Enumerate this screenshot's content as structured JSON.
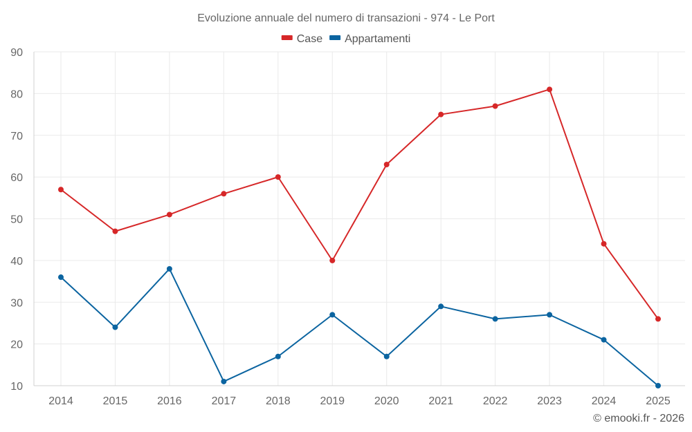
{
  "chart_data": {
    "type": "line",
    "title": "Evoluzione annuale del numero di transazioni - 974 - Le Port",
    "categories": [
      "2014",
      "2015",
      "2016",
      "2017",
      "2018",
      "2019",
      "2020",
      "2021",
      "2022",
      "2023",
      "2024",
      "2025"
    ],
    "series": [
      {
        "name": "Case",
        "color": "#d62728",
        "values": [
          57,
          47,
          51,
          56,
          60,
          40,
          63,
          75,
          77,
          81,
          44,
          26
        ]
      },
      {
        "name": "Appartamenti",
        "color": "#0b64a0",
        "values": [
          36,
          24,
          38,
          11,
          17,
          27,
          17,
          29,
          26,
          27,
          21,
          10
        ]
      }
    ],
    "ylim": [
      10,
      90
    ],
    "yticks": [
      10,
      20,
      30,
      40,
      50,
      60,
      70,
      80,
      90
    ],
    "xlabel": "",
    "ylabel": "",
    "grid": true,
    "legend": "top-center"
  },
  "credit": "© emooki.fr - 2026"
}
